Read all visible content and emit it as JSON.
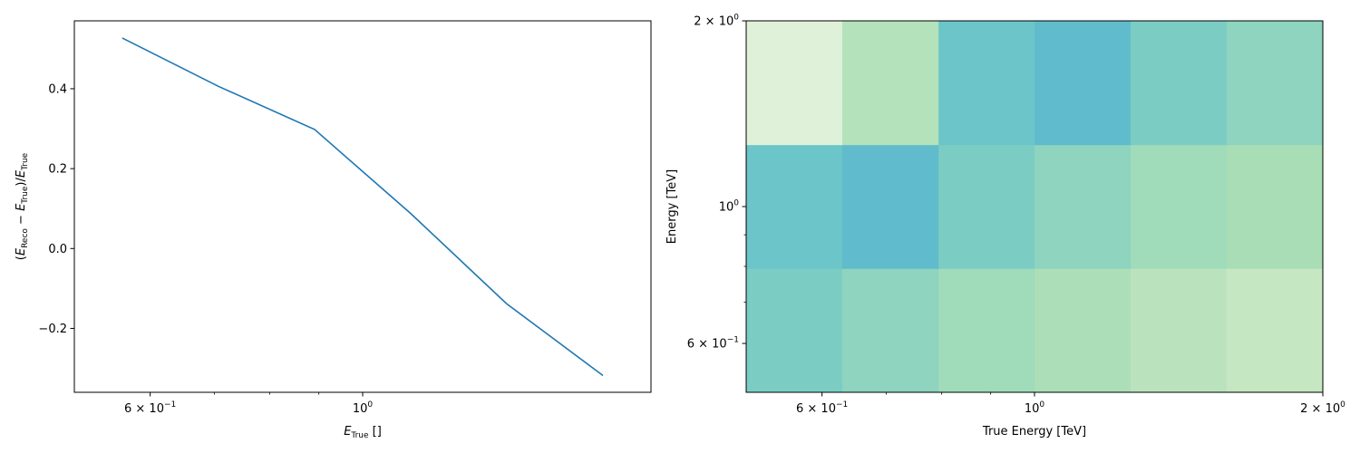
{
  "chart_data": [
    {
      "type": "line",
      "xscale": "log",
      "xlabel": "E_True []",
      "ylabel": "(E_Reco − E_True)/E_True",
      "xlim": [
        0.5,
        2.0
      ],
      "ylim": [
        -0.36,
        0.57
      ],
      "x_ticks": [
        {
          "value": 0.6,
          "label": "6 × 10^−1"
        },
        {
          "value": 1.0,
          "label": "10^0"
        }
      ],
      "y_ticks": [
        {
          "value": -0.2,
          "label": "−0.2"
        },
        {
          "value": 0.0,
          "label": "0.0"
        },
        {
          "value": 0.2,
          "label": "0.2"
        },
        {
          "value": 0.4,
          "label": "0.4"
        }
      ],
      "series": [
        {
          "color": "#1f77b4",
          "x": [
            0.561,
            0.707,
            0.891,
            1.122,
            1.413,
            1.782
          ],
          "y": [
            0.527,
            0.406,
            0.298,
            0.088,
            -0.138,
            -0.318
          ]
        }
      ]
    },
    {
      "type": "heatmap",
      "xscale": "log",
      "yscale": "log",
      "xlabel": "True Energy [TeV]",
      "ylabel": "Energy [TeV]",
      "colormap": "GnBu",
      "x_edges": [
        0.5,
        0.63,
        0.794,
        1.0,
        1.26,
        1.587,
        2.0
      ],
      "y_edges": [
        0.5,
        0.794,
        1.26,
        2.0
      ],
      "x_ticks": [
        {
          "value": 0.6,
          "label": "6 × 10^−1"
        },
        {
          "value": 1.0,
          "label": "10^0"
        },
        {
          "value": 2.0,
          "label": "2 × 10^0"
        }
      ],
      "y_ticks": [
        {
          "value": 0.6,
          "label": "6 × 10^−1"
        },
        {
          "value": 1.0,
          "label": "10^0"
        },
        {
          "value": 2.0,
          "label": "2 × 10^0"
        }
      ],
      "cells": [
        [
          "#7bcdc4",
          "#8ed4be",
          "#a0dbba",
          "#acdfb8",
          "#bae3bd",
          "#c5e7c2"
        ],
        [
          "#6bc5c9",
          "#60bccc",
          "#7bcdc4",
          "#8ed4be",
          "#a0dbba",
          "#a8ddb5"
        ],
        [
          "#dff1d8",
          "#b3e2bb",
          "#6bc5c9",
          "#60bccc",
          "#7bcdc4",
          "#8ed4be"
        ]
      ]
    }
  ]
}
